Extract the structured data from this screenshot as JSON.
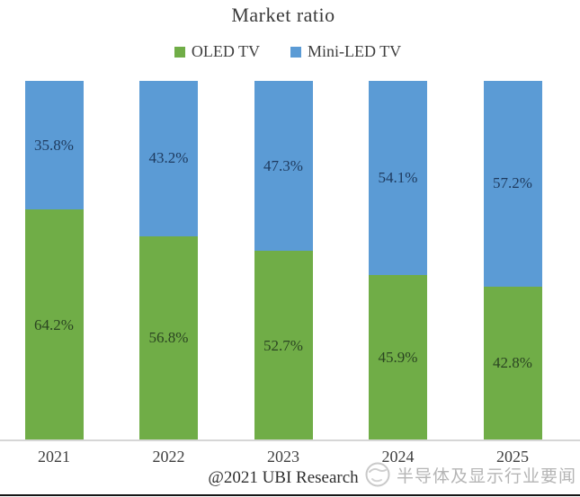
{
  "title": "Market ratio",
  "legend": {
    "items": [
      {
        "label": "OLED TV",
        "color": "#70ad47"
      },
      {
        "label": "Mini-LED TV",
        "color": "#5b9bd5"
      }
    ]
  },
  "chart_data": {
    "type": "bar",
    "stacked": true,
    "title": "Market ratio",
    "categories": [
      "2021",
      "2022",
      "2023",
      "2024",
      "2025"
    ],
    "series": [
      {
        "name": "OLED TV",
        "color": "#70ad47",
        "label_color": "#2b4522",
        "values": [
          64.2,
          56.8,
          52.7,
          45.9,
          42.8
        ]
      },
      {
        "name": "Mini-LED TV",
        "color": "#5b9bd5",
        "label_color": "#1e3a5e",
        "values": [
          35.8,
          43.2,
          47.3,
          54.1,
          57.2
        ]
      }
    ],
    "value_suffix": "%",
    "ylim": [
      0,
      100
    ],
    "grid": false,
    "legend_position": "top",
    "data_labels": "inside-center"
  },
  "footer": {
    "credit": "@2021 UBI Research",
    "watermark": "半导体及显示行业要闻"
  },
  "colors": {
    "axis_line": "#d6d6d6",
    "title_text": "#3a3a3a",
    "watermark_text": "#b5b5b5"
  }
}
